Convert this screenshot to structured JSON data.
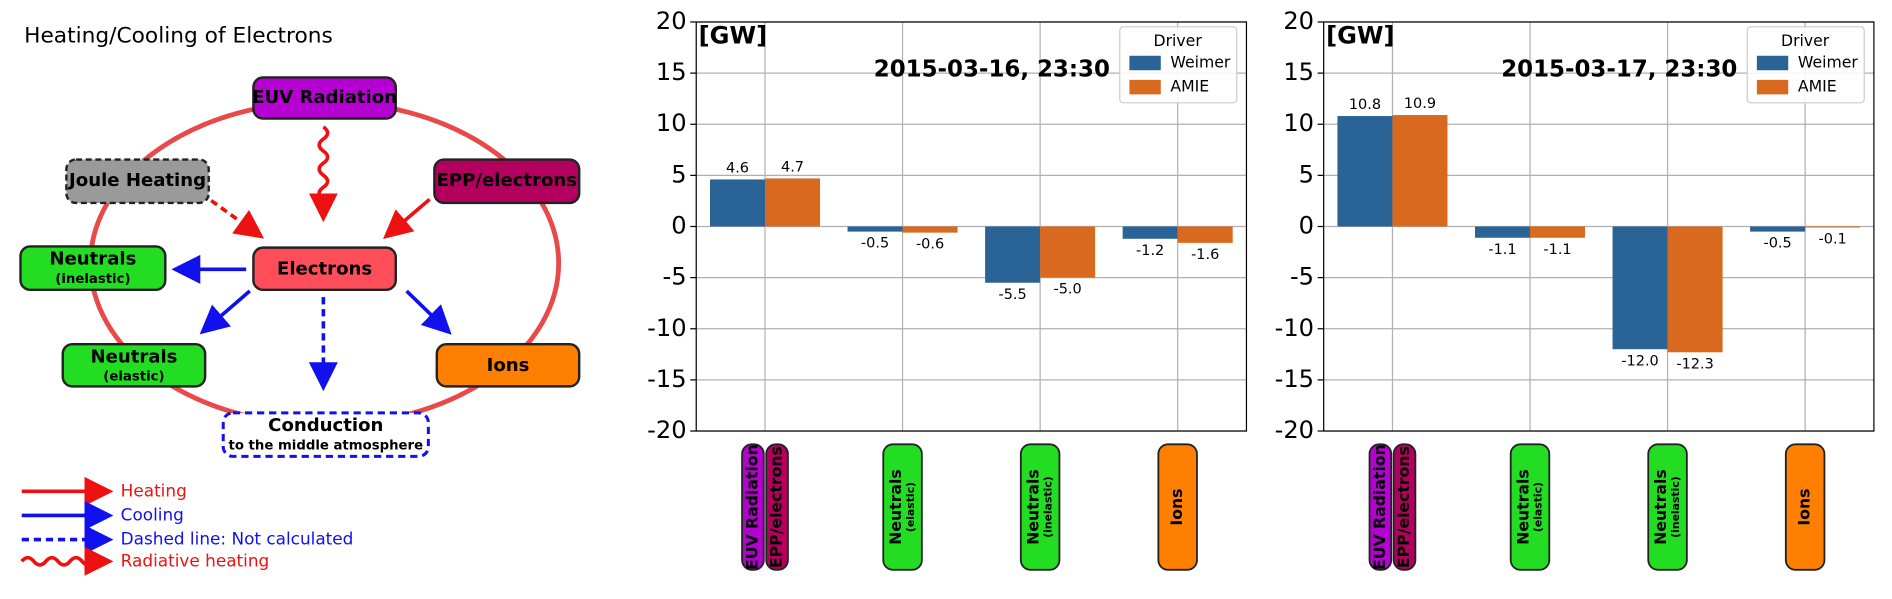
{
  "diagram": {
    "title": "Heating/Cooling of Electrons",
    "nodes": [
      {
        "label": "EUV Radiation"
      },
      {
        "label": "Joule Heating"
      },
      {
        "label": "EPP/electrons"
      },
      {
        "label": "Electrons"
      },
      {
        "label": "Neutrals",
        "sublabel": "(inelastic)"
      },
      {
        "label": "Neutrals",
        "sublabel": "(elastic)"
      },
      {
        "label": "Ions"
      },
      {
        "label": "Conduction",
        "sublabel": "to the middle atmosphere"
      }
    ],
    "legend": [
      "Heating",
      "Cooling",
      "Dashed line: Not calculated",
      "Radiative heating"
    ]
  },
  "chart_data": [
    {
      "type": "bar",
      "y_label": "[GW]",
      "annotation": "2015-03-16, 23:30",
      "categories": [
        [
          [
            "EUV Radiation"
          ],
          [
            "EPP/electrons"
          ]
        ],
        [
          [
            "Neutrals",
            "(elastic)"
          ]
        ],
        [
          [
            "Neutrals",
            "(inelastic)"
          ]
        ],
        [
          [
            "Ions"
          ]
        ]
      ],
      "category_colors": [
        [
          "#b400d0",
          "#b3005f"
        ],
        [
          "#22dd22"
        ],
        [
          "#22dd22"
        ],
        [
          "#ff7f00"
        ]
      ],
      "series": [
        {
          "name": "Weimer",
          "color": "#2a6396",
          "values": [
            4.6,
            -0.5,
            -5.5,
            -1.2
          ],
          "value_labels": [
            "4.6",
            "-0.5",
            "-5.5",
            "-1.2"
          ]
        },
        {
          "name": "AMIE",
          "color": "#d9691e",
          "values": [
            4.7,
            -0.6,
            -5.0,
            -1.6
          ],
          "value_labels": [
            "4.7",
            "-0.6",
            "-5.0",
            "-1.6"
          ]
        }
      ],
      "ylim": [
        -20,
        20
      ],
      "yticks": [
        -20,
        -15,
        -10,
        -5,
        0,
        5,
        10,
        15,
        20
      ],
      "grid": true,
      "legend_title": "Driver",
      "legend": "upper right"
    },
    {
      "type": "bar",
      "y_label": "[GW]",
      "annotation": "2015-03-17, 23:30",
      "categories": [
        [
          [
            "EUV Radiation"
          ],
          [
            "EPP/electrons"
          ]
        ],
        [
          [
            "Neutrals",
            "(elastic)"
          ]
        ],
        [
          [
            "Neutrals",
            "(inelastic)"
          ]
        ],
        [
          [
            "Ions"
          ]
        ]
      ],
      "category_colors": [
        [
          "#b400d0",
          "#b3005f"
        ],
        [
          "#22dd22"
        ],
        [
          "#22dd22"
        ],
        [
          "#ff7f00"
        ]
      ],
      "series": [
        {
          "name": "Weimer",
          "color": "#2a6396",
          "values": [
            10.8,
            -1.1,
            -12.0,
            -0.5
          ],
          "value_labels": [
            "10.8",
            "-1.1",
            "-12.0",
            "-0.5"
          ]
        },
        {
          "name": "AMIE",
          "color": "#d9691e",
          "values": [
            10.9,
            -1.1,
            -12.3,
            -0.1
          ],
          "value_labels": [
            "10.9",
            "-1.1",
            "-12.3",
            "-0.1"
          ]
        }
      ],
      "ylim": [
        -20,
        20
      ],
      "yticks": [
        -20,
        -15,
        -10,
        -5,
        0,
        5,
        10,
        15,
        20
      ],
      "grid": true,
      "legend_title": "Driver",
      "legend": "upper right"
    }
  ]
}
